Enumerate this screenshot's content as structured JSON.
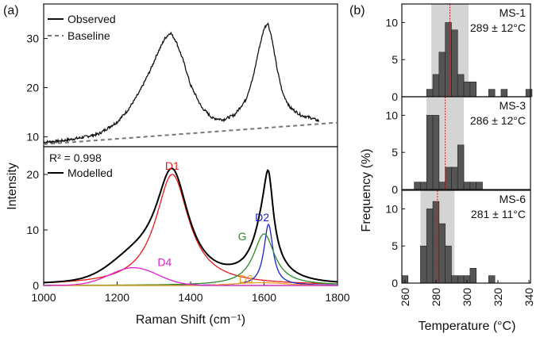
{
  "panel_labels": {
    "a": "(a)",
    "b": "(b)"
  },
  "chart_data": [
    {
      "type": "line",
      "id": "raman-observed",
      "title": "",
      "xlabel": "Raman Shift (cm⁻¹)",
      "ylabel": "Intensity",
      "xlim": [
        1000,
        1800
      ],
      "ylim": [
        8,
        37
      ],
      "yticks": [
        10,
        20,
        30
      ],
      "grid": false,
      "legend": {
        "placement": "top-left",
        "entries": [
          "Observed",
          "Baseline"
        ]
      },
      "series": [
        {
          "name": "Observed",
          "style": "solid",
          "color": "#111111",
          "x": [
            1000,
            1050,
            1100,
            1150,
            1200,
            1230,
            1260,
            1290,
            1310,
            1330,
            1345,
            1360,
            1380,
            1400,
            1430,
            1460,
            1490,
            1520,
            1550,
            1570,
            1585,
            1600,
            1610,
            1620,
            1635,
            1650,
            1670,
            1700,
            1730,
            1750
          ],
          "y": [
            8.9,
            9.2,
            9.8,
            10.6,
            13.0,
            15.5,
            19.0,
            23.5,
            27.0,
            30.0,
            31.2,
            29.5,
            25.5,
            20.5,
            16.0,
            13.8,
            13.5,
            14.5,
            17.5,
            22.0,
            27.5,
            32.0,
            33.2,
            30.5,
            24.0,
            19.0,
            16.0,
            14.4,
            13.8,
            13.2
          ]
        },
        {
          "name": "Baseline",
          "style": "dashed",
          "color": "#777777",
          "x": [
            1000,
            1800
          ],
          "y": [
            8.5,
            12.9
          ]
        }
      ]
    },
    {
      "type": "line",
      "id": "raman-modelled",
      "title": "",
      "xlabel": "Raman Shift (cm⁻¹)",
      "ylabel": "Intensity",
      "xlim": [
        1000,
        1800
      ],
      "ylim": [
        0,
        25
      ],
      "xticks": [
        1000,
        1200,
        1400,
        1600,
        1800
      ],
      "yticks": [
        0,
        10,
        20
      ],
      "grid": false,
      "r2_text": "R² = 0.998",
      "legend": {
        "placement": "top-left",
        "entries": [
          "Modelled"
        ]
      },
      "bands": [
        {
          "name": "D1",
          "color": "#e8191b",
          "center": 1350,
          "hwhm": 55,
          "amplitude": 20,
          "shape": "lorentzian"
        },
        {
          "name": "D2",
          "color": "#1a22c8",
          "center": 1612,
          "hwhm": 15,
          "amplitude": 11,
          "shape": "lorentzian"
        },
        {
          "name": "G",
          "color": "#2a8a2a",
          "center": 1600,
          "hwhm": 35,
          "amplitude": 9.3,
          "shape": "lorentzian"
        },
        {
          "name": "D3",
          "color": "#f0a020",
          "center": 1590,
          "sigma": 70,
          "amplitude": 0.5,
          "shape": "gaussian"
        },
        {
          "name": "D4",
          "color": "#e020d0",
          "center": 1245,
          "sigma": 65,
          "amplitude": 3.2,
          "shape": "gaussian"
        }
      ],
      "modelled": {
        "name": "Modelled",
        "color": "#000000",
        "x_range": [
          1000,
          1800
        ]
      }
    },
    {
      "type": "bar",
      "id": "ms-1",
      "sample": "MS-1",
      "label_text": "MS-1",
      "stat_text": "289 ± 12°C",
      "mean": 289,
      "sd": 12,
      "bin_width": 4,
      "bin_starts": [
        274,
        278,
        282,
        286,
        290,
        294,
        298,
        302,
        306,
        310,
        314,
        318,
        322,
        326,
        330,
        334,
        338
      ],
      "values": [
        1,
        3,
        6,
        10,
        9,
        3,
        2,
        2,
        0,
        0,
        1,
        0,
        1,
        0,
        0,
        0,
        1
      ],
      "ylim": [
        0,
        12.5
      ],
      "yticks": [
        0,
        5,
        10
      ],
      "xlim": [
        258,
        341
      ]
    },
    {
      "type": "bar",
      "id": "ms-3",
      "sample": "MS-3",
      "label_text": "MS-3",
      "stat_text": "286 ± 12°C",
      "mean": 286,
      "sd": 12,
      "bin_width": 4,
      "bin_starts": [
        258,
        262,
        266,
        270,
        274,
        278,
        282,
        286,
        290,
        294,
        298,
        302,
        306
      ],
      "values": [
        0,
        0,
        1,
        1,
        10,
        10,
        1,
        3,
        3,
        6,
        1,
        1,
        1
      ],
      "ylim": [
        0,
        12.5
      ],
      "yticks": [
        0,
        5,
        10
      ],
      "xlim": [
        258,
        341
      ]
    },
    {
      "type": "bar",
      "id": "ms-6",
      "sample": "MS-6",
      "label_text": "MS-6",
      "stat_text": "281 ± 11°C",
      "mean": 281,
      "sd": 11,
      "bin_width": 4,
      "bin_starts": [
        258,
        262,
        266,
        270,
        274,
        278,
        282,
        286,
        290,
        294,
        298,
        302,
        306,
        310,
        314,
        318
      ],
      "values": [
        1,
        0,
        0,
        5,
        10,
        11,
        8,
        5,
        1,
        1,
        1,
        2,
        0,
        0,
        1,
        0
      ],
      "ylim": [
        0,
        12.5
      ],
      "yticks": [
        0,
        5,
        10
      ],
      "xlim": [
        258,
        341
      ],
      "xticks": [
        260,
        280,
        300,
        320,
        340
      ],
      "xlabel": "Temperature (°C)",
      "ylabel": "Frequency (%)"
    }
  ],
  "colors": {
    "bar": "#555555",
    "shade": "#d4d4d4",
    "mean_line": "#cc2222"
  }
}
